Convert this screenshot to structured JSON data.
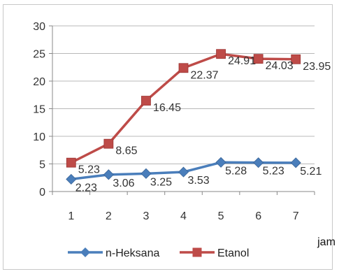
{
  "chart_data": {
    "type": "line",
    "title": "",
    "xlabel": "jam",
    "ylabel": "",
    "ylim": [
      0,
      30
    ],
    "yticks": [
      0,
      5,
      10,
      15,
      20,
      25,
      30
    ],
    "categories": [
      "1",
      "2",
      "3",
      "4",
      "5",
      "6",
      "7"
    ],
    "grid": "horizontal",
    "legend": "bottom",
    "series": [
      {
        "name": "n-Heksana",
        "color": "#4a7ebb",
        "marker": "diamond",
        "values": [
          2.23,
          3.06,
          3.25,
          3.53,
          5.28,
          5.23,
          5.21
        ],
        "labels": [
          "2.23",
          "3.06",
          "3.25",
          "3.53",
          "5.28",
          "5.23",
          "5.21"
        ]
      },
      {
        "name": "Etanol",
        "color": "#be4b48",
        "marker": "square",
        "values": [
          5.23,
          8.65,
          16.45,
          22.37,
          24.91,
          24.03,
          23.95
        ],
        "labels": [
          "5.23",
          "8.65",
          "16.45",
          "22.37",
          "24.91",
          "24.03",
          "23.95"
        ]
      }
    ]
  }
}
